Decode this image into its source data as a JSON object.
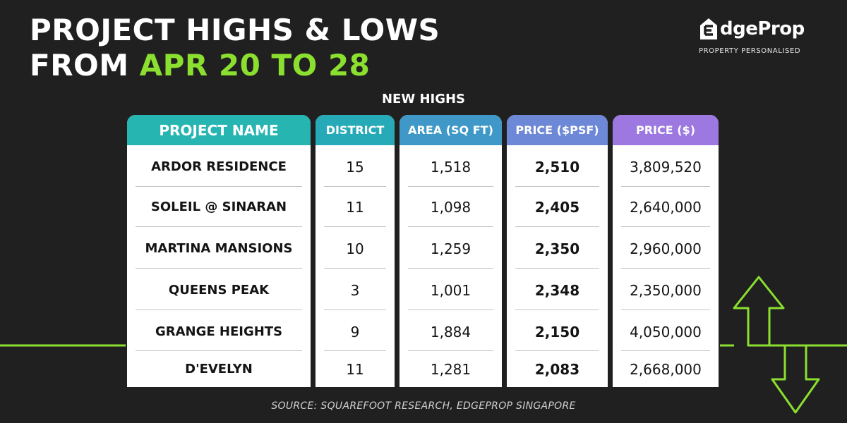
{
  "title": {
    "line1": "PROJECT HIGHS & LOWS",
    "line2_prefix": "FROM ",
    "line2_accent": "APR 20 TO 28"
  },
  "logo": {
    "brand": "dgeProp",
    "tagline": "PROPERTY PERSONALISED"
  },
  "section_title": "NEW HIGHS",
  "table": {
    "headers": {
      "project": "PROJECT NAME",
      "district": "DISTRICT",
      "area": "AREA (SQ FT)",
      "psf": "PRICE ($PSF)",
      "price": "PRICE ($)"
    },
    "rows": [
      {
        "project": "ARDOR RESIDENCE",
        "district": "15",
        "area": "1,518",
        "psf": "2,510",
        "price": "3,809,520"
      },
      {
        "project": "SOLEIL @ SINARAN",
        "district": "11",
        "area": "1,098",
        "psf": "2,405",
        "price": "2,640,000"
      },
      {
        "project": "MARTINA MANSIONS",
        "district": "10",
        "area": "1,259",
        "psf": "2,350",
        "price": "2,960,000"
      },
      {
        "project": "QUEENS PEAK",
        "district": "3",
        "area": "1,001",
        "psf": "2,348",
        "price": "2,350,000"
      },
      {
        "project": "GRANGE HEIGHTS",
        "district": "9",
        "area": "1,884",
        "psf": "2,150",
        "price": "4,050,000"
      },
      {
        "project": "D'EVELYN",
        "district": "11",
        "area": "1,281",
        "psf": "2,083",
        "price": "2,668,000"
      }
    ]
  },
  "source": "SOURCE: SQUAREFOOT RESEARCH, EDGEPROP SINGAPORE",
  "colors": {
    "background": "#202020",
    "accent_green": "#8be02f",
    "header_project": "#26b5b1",
    "header_district": "#27aab8",
    "header_area": "#3f98c7",
    "header_psf": "#6d88d6",
    "header_price": "#9c78e0"
  },
  "icons": [
    "edgeprop-house-icon",
    "up-down-arrow-icon"
  ]
}
